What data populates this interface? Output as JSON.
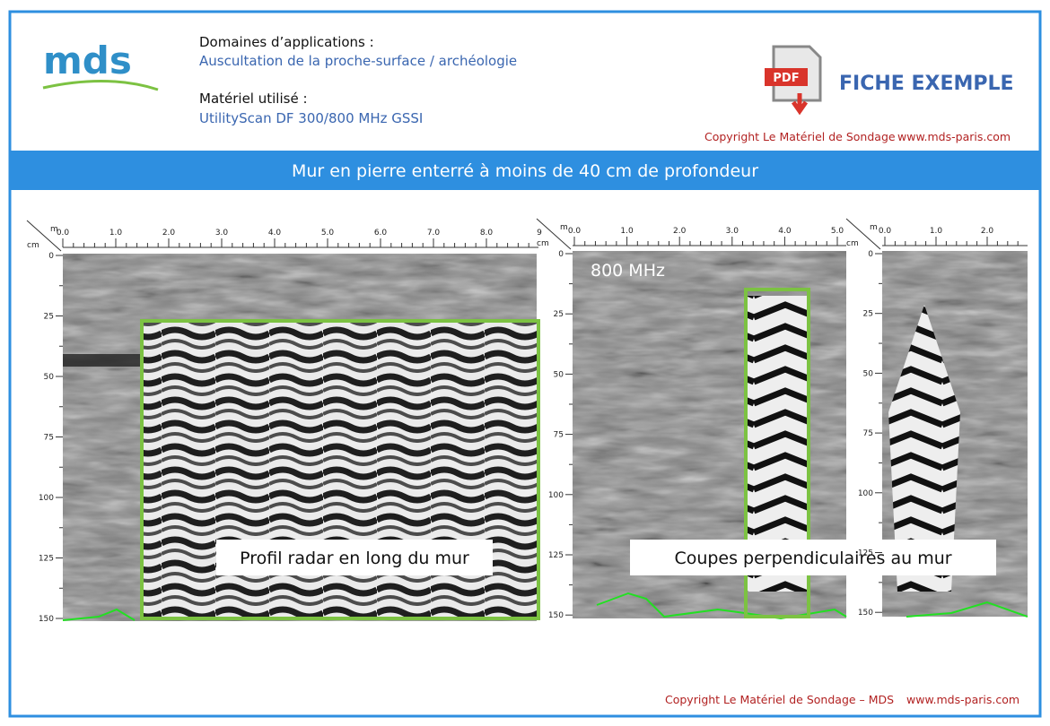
{
  "header": {
    "logo": "mds",
    "domain_label": "Domaines d’applications :",
    "domain_value": "Auscultation de la proche-surface / archéologie",
    "equipment_label": "Matériel utilisé :",
    "equipment_value": "UtilityScan DF 300/800 MHz GSSI",
    "pdf_icon": "PDF",
    "sheet_type": "FICHE EXEMPLE",
    "copyright": "Copyright Le Matériel de Sondage",
    "website": "www.mds-paris.com"
  },
  "banner": {
    "title": "Mur en pierre enterré à moins de 40 cm de profondeur"
  },
  "panels": [
    {
      "x_unit": "m",
      "y_unit": "cm",
      "x_ticks": [
        "0.0",
        "1.0",
        "2.0",
        "3.0",
        "4.0",
        "5.0",
        "6.0",
        "7.0",
        "8.0",
        "9"
      ],
      "y_ticks": [
        "0",
        "25",
        "50",
        "75",
        "100",
        "125",
        "150"
      ]
    },
    {
      "x_unit": "m",
      "y_unit": "cm",
      "x_ticks": [
        "0.0",
        "1.0",
        "2.0",
        "3.0",
        "4.0",
        "5.0"
      ],
      "y_ticks": [
        "0",
        "25",
        "50",
        "75",
        "100",
        "125",
        "150"
      ]
    },
    {
      "x_unit": "m",
      "y_unit": "cm",
      "x_ticks": [
        "0.0",
        "1.0",
        "2.0"
      ],
      "y_ticks": [
        "0",
        "25",
        "50",
        "75",
        "100",
        "125",
        "150"
      ]
    }
  ],
  "annotations": {
    "frequency": "800 MHz",
    "profile_label": "Profil radar en long du mur",
    "sections_label": "Coupes perpendiculaires au mur"
  },
  "footer": {
    "copyright": "Copyright Le Matériel de Sondage – MDS",
    "website": "www.mds-paris.com"
  }
}
